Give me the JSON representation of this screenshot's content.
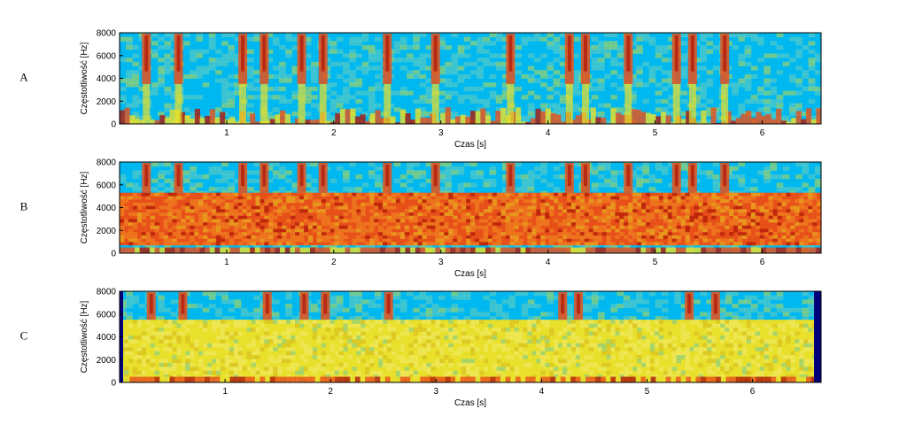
{
  "chart_data": [
    {
      "type": "heatmap",
      "panel_label": "A",
      "xlabel": "Czas [s]",
      "ylabel": "Częstotliwość [Hz]",
      "xlim": [
        0,
        6.55
      ],
      "ylim": [
        0,
        8000
      ],
      "xticks": [
        1,
        2,
        3,
        4,
        5,
        6
      ],
      "yticks": [
        0,
        2000,
        4000,
        6000,
        8000
      ],
      "description_values": {
        "noise_band_hz": null,
        "speech_energy_times_s": [
          0.25,
          0.55,
          1.15,
          1.35,
          1.7,
          1.9,
          2.5,
          2.95,
          3.65,
          4.2,
          4.35,
          4.75,
          5.2,
          5.35,
          5.65
        ]
      }
    },
    {
      "type": "heatmap",
      "panel_label": "B",
      "xlabel": "Czas [s]",
      "ylabel": "Częstotliwość [Hz]",
      "xlim": [
        0,
        6.55
      ],
      "ylim": [
        0,
        8000
      ],
      "xticks": [
        1,
        2,
        3,
        4,
        5,
        6
      ],
      "yticks": [
        0,
        2000,
        4000,
        6000,
        8000
      ],
      "description_values": {
        "noise_band_hz": [
          700,
          5300
        ],
        "speech_energy_times_s": [
          0.25,
          0.55,
          1.15,
          1.35,
          1.7,
          1.9,
          2.5,
          2.95,
          3.65,
          4.2,
          4.35,
          4.75,
          5.2,
          5.35,
          5.65
        ]
      }
    },
    {
      "type": "heatmap",
      "panel_label": "C",
      "xlabel": "Czas [s]",
      "ylabel": "Częstotliwość [Hz]",
      "xlim": [
        0,
        6.65
      ],
      "ylim": [
        0,
        8000
      ],
      "xticks": [
        1,
        2,
        3,
        4,
        5,
        6
      ],
      "yticks": [
        0,
        2000,
        4000,
        6000,
        8000
      ],
      "description_values": {
        "noise_band_hz": [
          0,
          5500
        ],
        "speech_energy_times_s": [
          0.3,
          0.6,
          1.4,
          1.75,
          1.95,
          2.55,
          4.2,
          4.35,
          5.4,
          5.65
        ]
      }
    }
  ],
  "colors": {
    "low": "#00b8f0",
    "mid": "#e8e02a",
    "high": "#e8501a",
    "peak": "#b01808",
    "edge": "#00007a"
  }
}
